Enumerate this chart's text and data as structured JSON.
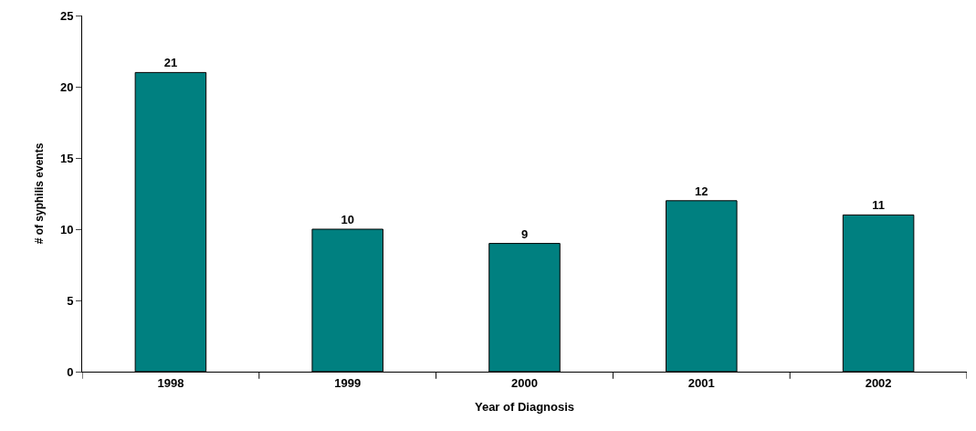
{
  "chart_data": {
    "type": "bar",
    "xlabel": "Year of Diagnosis",
    "ylabel": "# of syphilis events",
    "categories": [
      "1998",
      "1999",
      "2000",
      "2001",
      "2002"
    ],
    "values": [
      21,
      10,
      9,
      12,
      11
    ],
    "color": "#008080",
    "ylim": [
      0,
      25
    ],
    "yticks": [
      0,
      5,
      10,
      15,
      20,
      25
    ],
    "data_labels": true
  }
}
